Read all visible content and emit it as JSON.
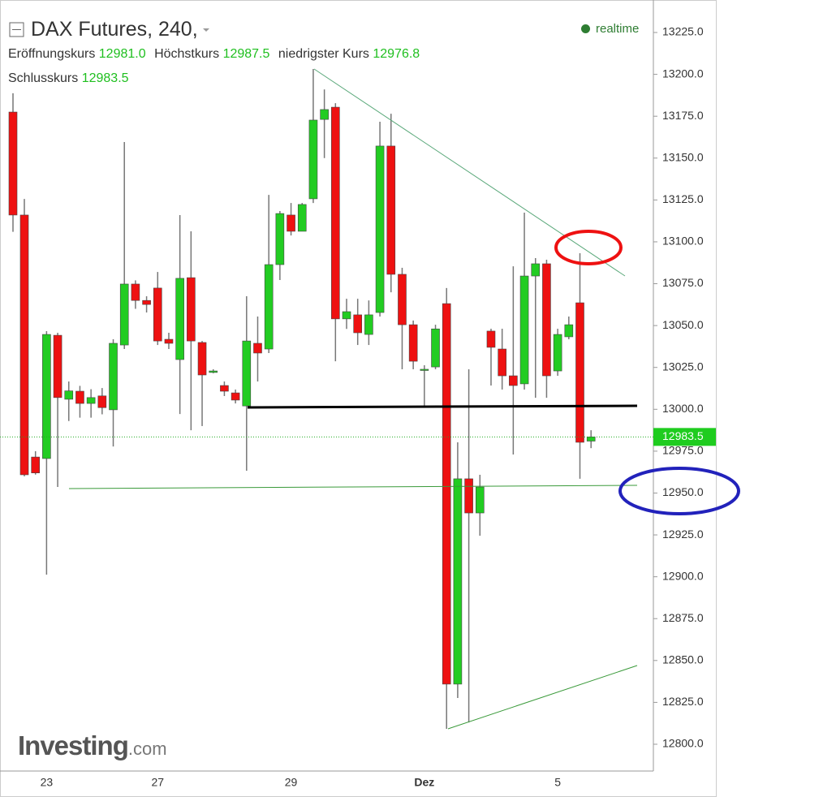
{
  "header": {
    "title": "DAX Futures, 240,",
    "realtime": "realtime",
    "open_label": "Eröffnungskurs",
    "open": "12981.0",
    "high_label": "Höchstkurs",
    "high": "12987.5",
    "low_label": "niedrigster Kurs",
    "low": "12976.8",
    "close_label": "Schlusskurs",
    "close": "12983.5"
  },
  "logo": [
    "Investing",
    ".com"
  ],
  "chart_data": {
    "type": "candlestick",
    "categories": [
      null,
      null,
      null,
      "23",
      null,
      null,
      null,
      null,
      null,
      null,
      null,
      null,
      null,
      "27",
      null,
      null,
      null,
      null,
      null,
      null,
      null,
      null,
      null,
      null,
      null,
      "29",
      null,
      null,
      null,
      null,
      null,
      null,
      null,
      null,
      null,
      null,
      null,
      "Dez",
      null,
      null,
      null,
      null,
      null,
      null,
      null,
      null,
      null,
      null,
      null,
      "5",
      null,
      null,
      null
    ],
    "open": [
      13177.5,
      13116,
      12971.5,
      12970.6,
      13044.2,
      13006,
      13010.8,
      13003.5,
      13008,
      12999.7,
      13038.4,
      13074.8,
      13065,
      13072.4,
      13041.8,
      13029.7,
      13078.6,
      13039.9,
      13022,
      13014.2,
      13009.8,
      13002,
      13039.4,
      13036,
      13086.4,
      13116,
      13106.3,
      13125.7,
      13173.1,
      13180.4,
      13054,
      13056.4,
      13044.7,
      13057.8,
      13157.2,
      13080.6,
      13050.5,
      13023.4,
      13025.3,
      13063.1,
      12835.9,
      12958.5,
      12938.1,
      13046.7,
      13036,
      13020,
      13015.2,
      13079.6,
      13086.9,
      13022.9,
      13043.3,
      13063.6,
      12981.0
    ],
    "high": [
      13188.7,
      13125.6,
      12975,
      13046.7,
      13045.7,
      13016.6,
      13014,
      13012,
      13012.7,
      13041.8,
      13159.6,
      13077,
      13067.5,
      13082,
      13045.7,
      13116,
      13106.3,
      13040.8,
      13023.9,
      13016.6,
      13011.8,
      13067.5,
      13055.4,
      13128,
      13118.4,
      13123.2,
      13123.2,
      13203.2,
      13191,
      13182.8,
      13066,
      13066,
      13065,
      13171.7,
      13176.5,
      13084.5,
      13053,
      13026.3,
      13050.5,
      13072.4,
      12980.3,
      13023.9,
      12960.9,
      13048.1,
      13048.1,
      13085.4,
      13117.4,
      13090.3,
      13089.3,
      13048.1,
      13055.4,
      13093.2,
      12987.5
    ],
    "low": [
      13106,
      12960,
      12961,
      12901.3,
      12953.6,
      12993,
      12995,
      12995,
      12997,
      12977.8,
      13036,
      13060,
      13057.8,
      13038.4,
      13036,
      12997.2,
      12987.5,
      12990,
      13021.5,
      13007.9,
      13003.5,
      12963.3,
      13016.6,
      13033.6,
      13077.2,
      13103.8,
      13106.3,
      13123.2,
      13150,
      13028.7,
      13048,
      13038.4,
      13038.4,
      13055.4,
      13069.9,
      13023.9,
      13023.9,
      13002,
      13023.9,
      12809.2,
      12827.6,
      12813,
      12924.5,
      13014.2,
      13011.8,
      12973,
      13011.8,
      13006.9,
      13006.9,
      13020,
      13041.8,
      12958.5,
      12976.8
    ],
    "close": [
      13116,
      12960.9,
      12962,
      13044.7,
      13007,
      13011,
      13003.5,
      13007,
      13001,
      13039.4,
      13074.8,
      13065,
      13062.6,
      13040.8,
      13039.4,
      13078.2,
      13040.8,
      13020.5,
      13022.9,
      13010.8,
      13005.5,
      13040.8,
      13033.6,
      13086.4,
      13116.9,
      13106.3,
      13122.3,
      13172.7,
      13179,
      13054,
      13058.3,
      13045.7,
      13056.4,
      13157.2,
      13080.6,
      13050.5,
      13028.7,
      13023.9,
      13048,
      12835.9,
      12958.5,
      12938.1,
      12953.6,
      13037,
      13020,
      13014.2,
      13079.6,
      13086.9,
      13020,
      13044.7,
      13050.5,
      12980.3,
      12983.5
    ],
    "up_color": "#22cc22",
    "down_color": "#ee1111",
    "wick_color": "#777777",
    "last_price": 12983.5,
    "ylim": [
      12784,
      13244.4
    ],
    "yticks": [
      {
        "value": 12800,
        "label": "12800.0"
      },
      {
        "value": 12825,
        "label": "12825.0"
      },
      {
        "value": 12850,
        "label": "12850.0"
      },
      {
        "value": 12875,
        "label": "12875.0"
      },
      {
        "value": 12900,
        "label": "12900.0"
      },
      {
        "value": 12925,
        "label": "12925.0"
      },
      {
        "value": 12950,
        "label": "12950.0"
      },
      {
        "value": 12975,
        "label": "12975.0"
      },
      {
        "value": 13000,
        "label": "13000.0"
      },
      {
        "value": 13025,
        "label": "13025.0"
      },
      {
        "value": 13050,
        "label": "13050.0"
      },
      {
        "value": 13075,
        "label": "13075.0"
      },
      {
        "value": 13100,
        "label": "13100.0"
      },
      {
        "value": 13125,
        "label": "13125.0"
      },
      {
        "value": 13150,
        "label": "13150.0"
      },
      {
        "value": 13175,
        "label": "13175.0"
      },
      {
        "value": 13200,
        "label": "13200.0"
      },
      {
        "value": 13225,
        "label": "13225.0"
      }
    ]
  }
}
